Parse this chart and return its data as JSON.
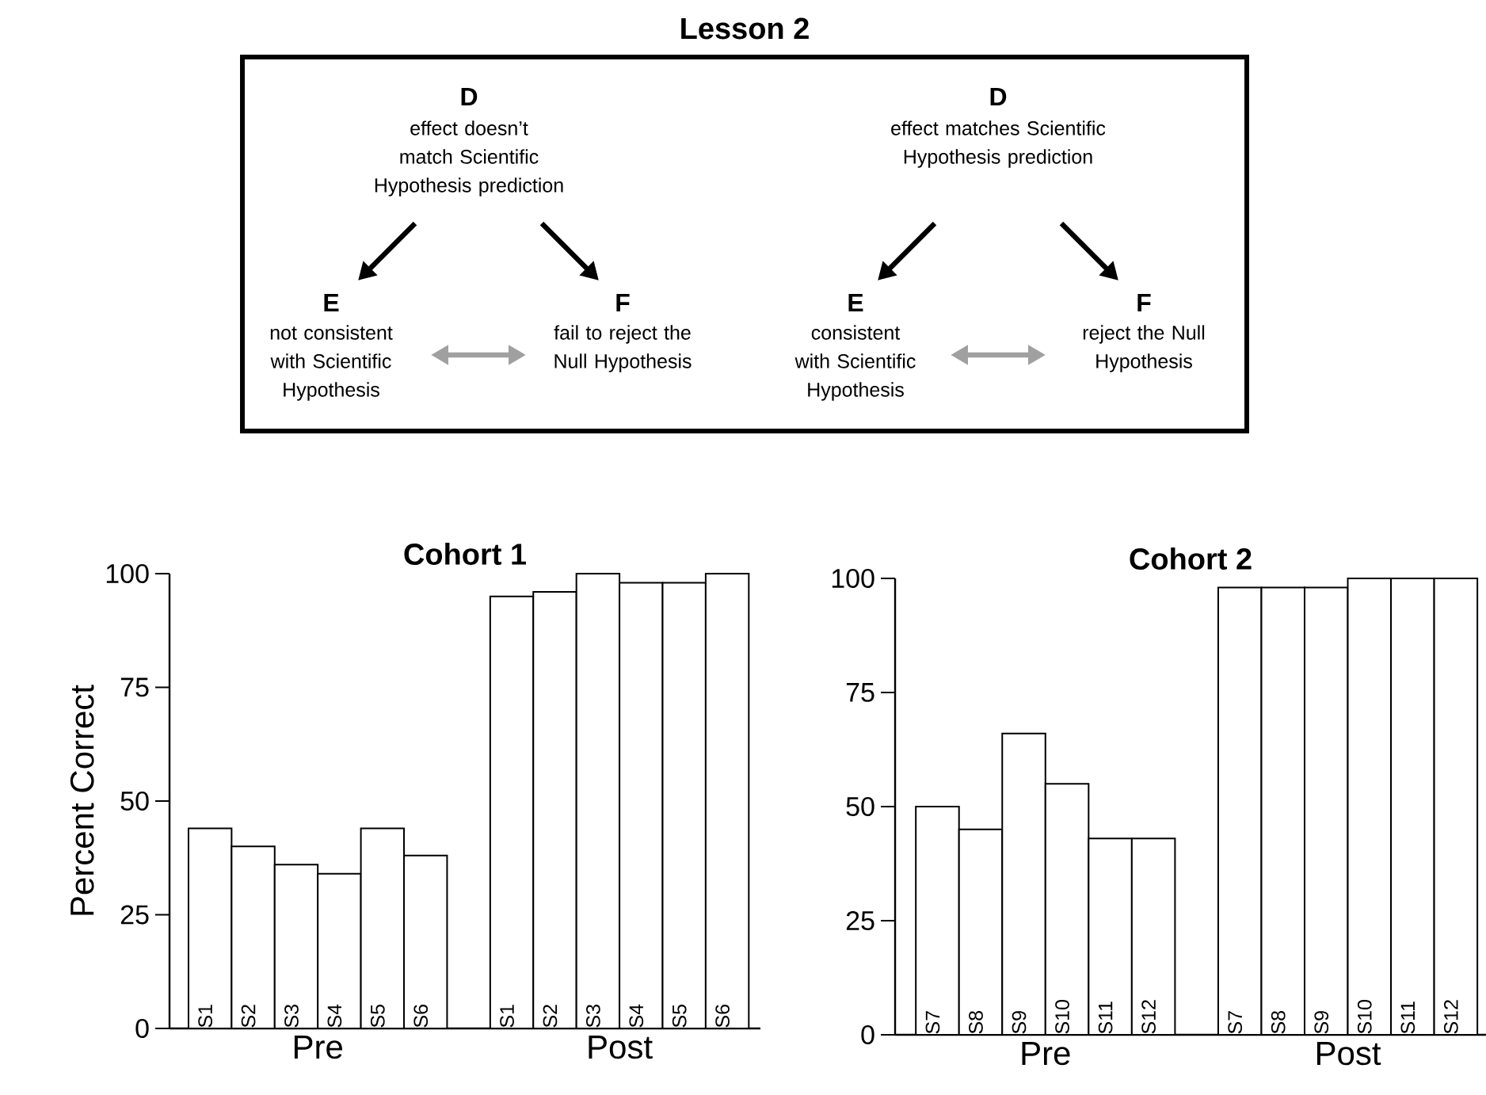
{
  "chart_data": [
    {
      "type": "other",
      "title": "Lesson 2",
      "annotations": [
        "D",
        "effect doesn’t match Scientific Hypothesis prediction",
        "E",
        "not consistent with Scientific Hypothesis",
        "F",
        "fail to reject the Null Hypothesis",
        "D",
        "effect matches Scientific Hypothesis prediction",
        "E",
        "consistent with Scientific Hypothesis",
        "F",
        "reject the Null Hypothesis"
      ]
    },
    {
      "type": "bar",
      "title": "Cohort 1",
      "ylabel": "Percent Correct",
      "categories": [
        "S1",
        "S2",
        "S3",
        "S4",
        "S5",
        "S6",
        null,
        "S1",
        "S2",
        "S3",
        "S4",
        "S5",
        "S6"
      ],
      "values": [
        44,
        40,
        36,
        34,
        44,
        38,
        null,
        95,
        96,
        100,
        98,
        98,
        100
      ],
      "color": "#ffffff",
      "ylim": [
        0,
        100
      ],
      "yticks": [
        0,
        25,
        50,
        75,
        100
      ],
      "annotations": [
        "Pre",
        "Post"
      ]
    },
    {
      "type": "bar",
      "title": "Cohort 2",
      "categories": [
        "S7",
        "S8",
        "S9",
        "S10",
        "S11",
        "S12",
        null,
        "S7",
        "S8",
        "S9",
        "S10",
        "S11",
        "S12"
      ],
      "values": [
        50,
        45,
        66,
        55,
        43,
        43,
        null,
        98,
        98,
        98,
        100,
        100,
        100
      ],
      "color": "#ffffff",
      "ylim": [
        0,
        100
      ],
      "yticks": [
        0,
        25,
        50,
        75,
        100
      ],
      "annotations": [
        "Pre",
        "Post"
      ]
    }
  ]
}
